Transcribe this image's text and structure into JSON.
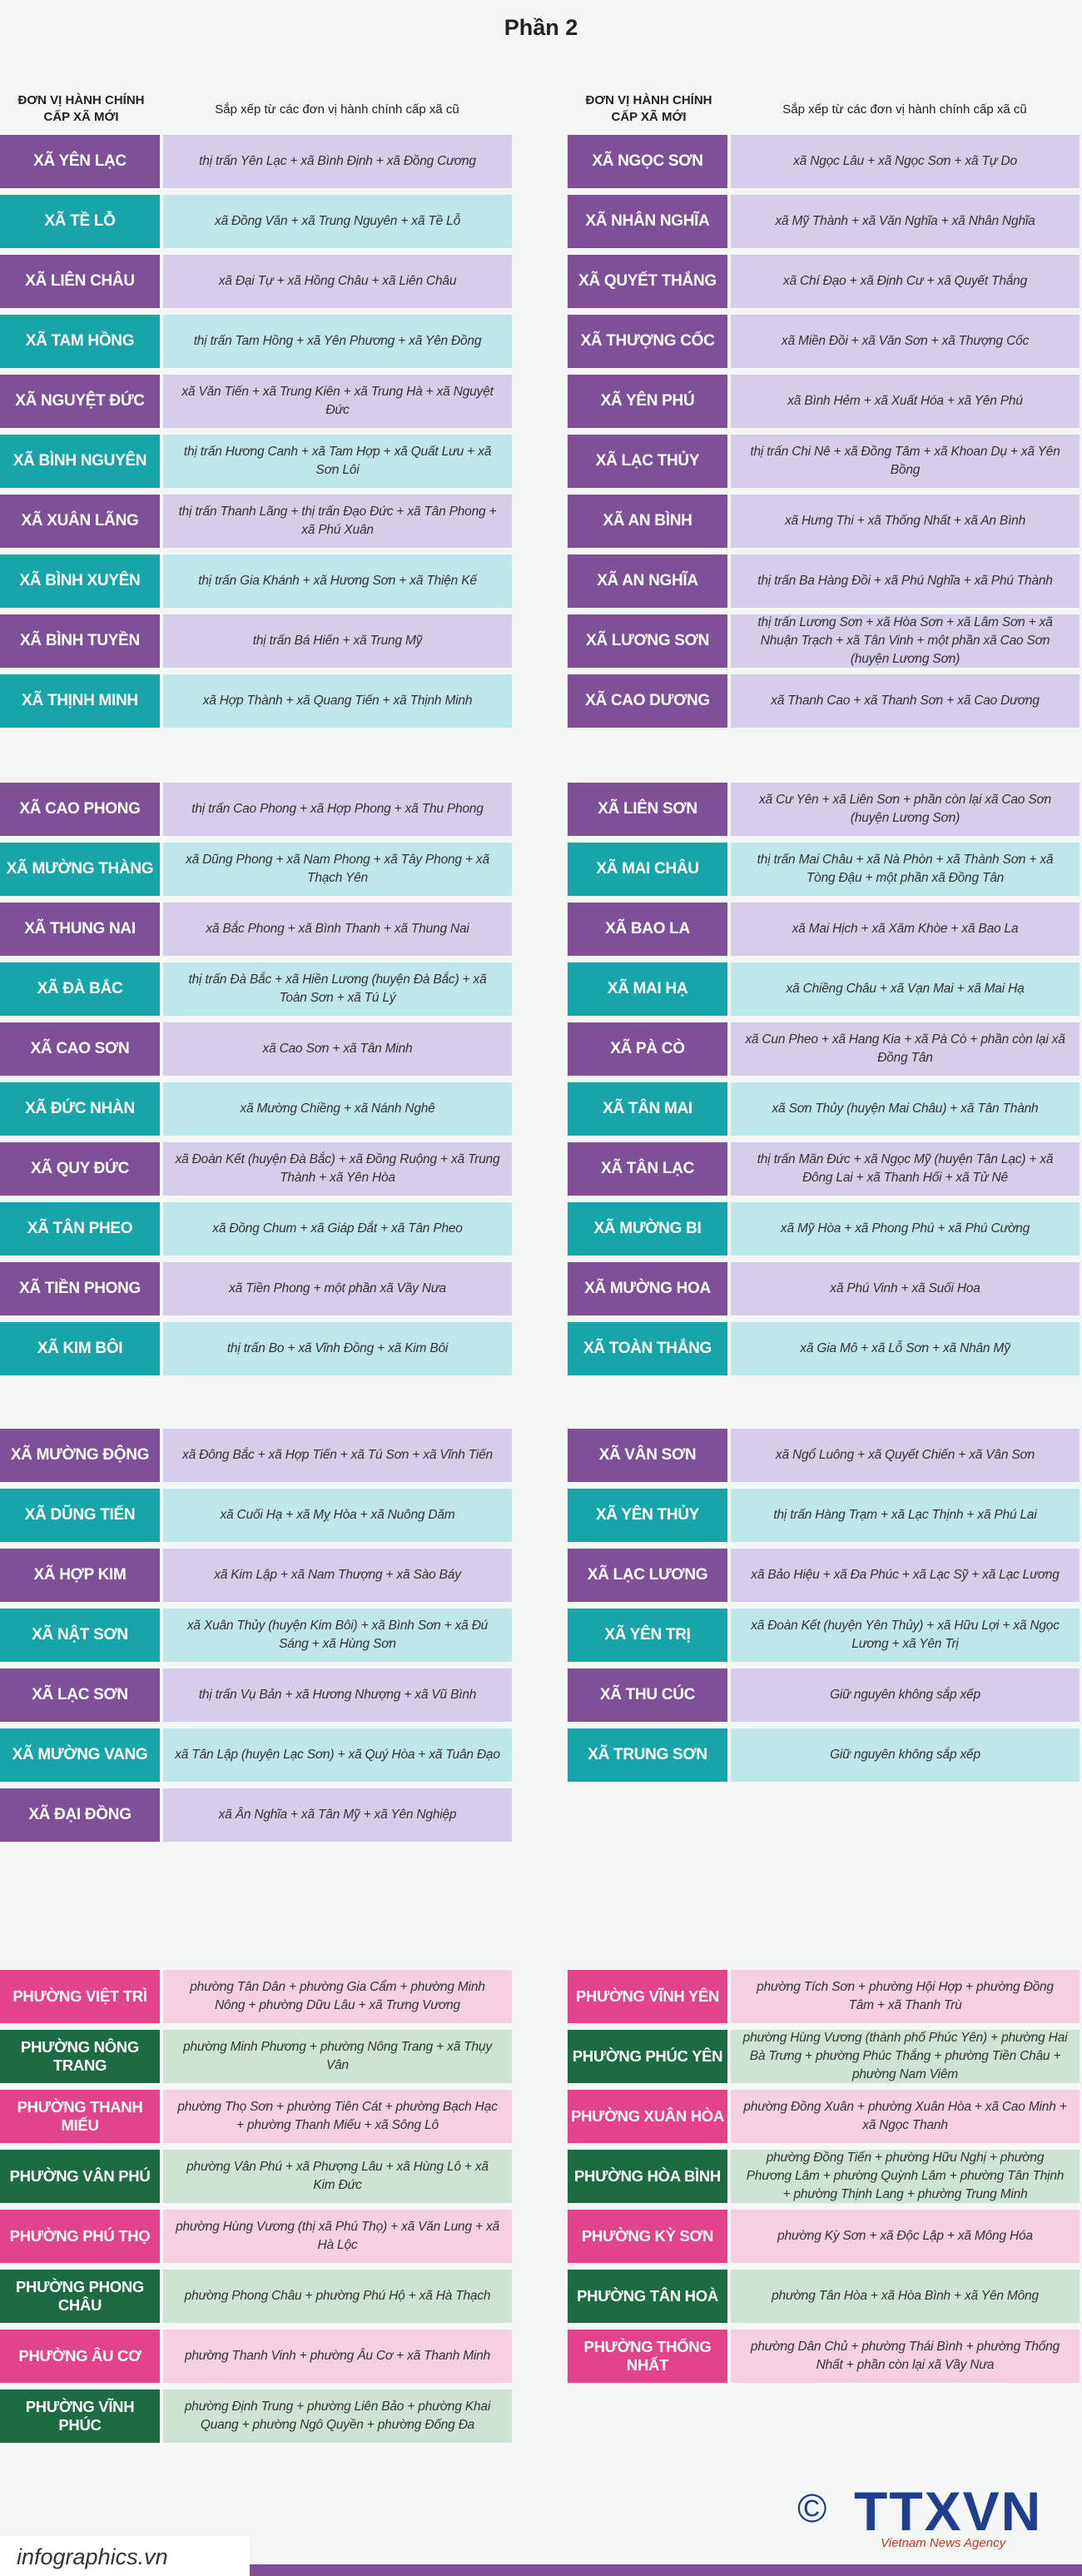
{
  "title": "Phần 2",
  "header": {
    "col1_line1": "ĐƠN VỊ HÀNH CHÍNH",
    "col1_line2": "CẤP XÃ MỚI",
    "col2": "Sắp xếp từ các đơn vị hành chính cấp xã cũ"
  },
  "section1_left": [
    {
      "name": "XÃ YÊN LẠC",
      "desc": "thị trấn Yên Lạc + xã Bình Định + xã Đồng Cương"
    },
    {
      "name": "XÃ TỀ LỖ",
      "desc": "xã Đồng Văn + xã Trung Nguyên + xã Tề Lỗ"
    },
    {
      "name": "XÃ LIÊN CHÂU",
      "desc": "xã Đại Tự + xã Hồng Châu + xã Liên Châu"
    },
    {
      "name": "XÃ TAM HỒNG",
      "desc": "thị trấn Tam Hồng + xã Yên Phương + xã Yên Đồng"
    },
    {
      "name": "XÃ NGUYỆT ĐỨC",
      "desc": "xã Văn Tiến + xã Trung Kiên + xã Trung Hà + xã Nguyệt Đức"
    },
    {
      "name": "XÃ BÌNH NGUYÊN",
      "desc": "thị trấn Hương Canh + xã Tam Hợp + xã Quất Lưu + xã Sơn Lôi"
    },
    {
      "name": "XÃ XUÂN LÃNG",
      "desc": "thị trấn Thanh Lãng + thị trấn Đạo Đức + xã Tân Phong + xã Phú Xuân"
    },
    {
      "name": "XÃ BÌNH XUYÊN",
      "desc": "thị trấn Gia Khánh + xã Hương Sơn + xã Thiện Kế"
    },
    {
      "name": "XÃ BÌNH TUYỀN",
      "desc": "thị trấn Bá Hiến + xã Trung Mỹ"
    },
    {
      "name": "XÃ THỊNH MINH",
      "desc": "xã Hợp Thành + xã Quang Tiến + xã Thịnh Minh"
    }
  ],
  "section1_right": [
    {
      "name": "XÃ NGỌC SƠN",
      "desc": "xã Ngọc Lâu + xã Ngọc Sơn + xã Tự Do"
    },
    {
      "name": "XÃ NHÂN NGHĨA",
      "desc": "xã Mỹ Thành + xã Văn Nghĩa + xã Nhân Nghĩa"
    },
    {
      "name": "XÃ QUYẾT THẮNG",
      "desc": "xã Chí Đạo + xã Định Cư + xã Quyết Thắng"
    },
    {
      "name": "XÃ THƯỢNG CỐC",
      "desc": "xã Miền Đồi + xã Văn Sơn + xã Thượng Cốc"
    },
    {
      "name": "XÃ YÊN PHÚ",
      "desc": "xã Bình Hẻm + xã Xuất Hóa + xã Yên Phú"
    },
    {
      "name": "XÃ LẠC THỦY",
      "desc": "thị trấn Chi Nê + xã Đồng Tâm + xã Khoan Dụ + xã Yên Bồng"
    },
    {
      "name": "XÃ AN BÌNH",
      "desc": "xã Hưng Thi + xã Thống Nhất + xã An Bình"
    },
    {
      "name": "XÃ AN NGHĨA",
      "desc": "thị trấn Ba Hàng Đồi + xã Phú Nghĩa + xã Phú Thành"
    },
    {
      "name": "XÃ LƯƠNG SƠN",
      "desc": "thị trấn Lương Sơn + xã Hòa Sơn + xã Lâm Sơn + xã Nhuận Trạch + xã Tân Vinh + một phần xã Cao Sơn (huyện Lương Sơn)"
    },
    {
      "name": "XÃ CAO DƯƠNG",
      "desc": "xã Thanh Cao + xã Thanh Sơn + xã Cao Dương"
    }
  ],
  "section2_left": [
    {
      "name": "XÃ CAO PHONG",
      "desc": "thị trấn Cao Phong + xã Hợp Phong + xã Thu Phong"
    },
    {
      "name": "XÃ MƯỜNG THÀNG",
      "desc": "xã Dũng Phong + xã Nam Phong + xã Tây Phong + xã Thạch Yên"
    },
    {
      "name": "XÃ THUNG NAI",
      "desc": "xã Bắc Phong + xã Bình Thanh + xã Thung Nai"
    },
    {
      "name": "XÃ ĐÀ BẮC",
      "desc": "thị trấn Đà Bắc + xã Hiền Lương (huyện Đà Bắc) + xã Toàn Sơn + xã Tú Lý"
    },
    {
      "name": "XÃ CAO SƠN",
      "desc": "xã Cao Sơn + xã Tân Minh"
    },
    {
      "name": "XÃ ĐỨC NHÀN",
      "desc": "xã Mường Chiềng + xã Nánh Nghê"
    },
    {
      "name": "XÃ QUY ĐỨC",
      "desc": "xã Đoàn Kết (huyện Đà Bắc) + xã Đồng Ruộng + xã Trung Thành + xã Yên Hòa"
    },
    {
      "name": "XÃ TÂN PHEO",
      "desc": "xã Đồng Chum + xã Giáp Đắt + xã Tân Pheo"
    },
    {
      "name": "XÃ TIỀN PHONG",
      "desc": "xã Tiền Phong + một phần xã Vầy Nưa"
    },
    {
      "name": "XÃ KIM BÔI",
      "desc": "thị trấn Bo + xã Vĩnh Đồng + xã Kim Bôi"
    }
  ],
  "section2_right": [
    {
      "name": "XÃ LIÊN SƠN",
      "desc": "xã Cư Yên + xã Liên Sơn + phần còn lại xã Cao Sơn (huyện Lương Sơn)"
    },
    {
      "name": "XÃ MAI CHÂU",
      "desc": "thị trấn Mai Châu + xã Nà Phòn + xã Thành Sơn + xã Tòng Đậu + một phần xã Đồng Tân"
    },
    {
      "name": "XÃ BAO LA",
      "desc": "xã Mai Hịch + xã Xăm Khòe + xã Bao La"
    },
    {
      "name": "XÃ MAI HẠ",
      "desc": "xã Chiềng Châu + xã Vạn Mai + xã Mai Hạ"
    },
    {
      "name": "XÃ PÀ CÒ",
      "desc": "xã Cun Pheo + xã Hang Kia + xã Pà Cò + phần còn lại xã Đồng Tân"
    },
    {
      "name": "XÃ TÂN MAI",
      "desc": "xã Sơn Thủy (huyện Mai Châu) + xã Tân Thành"
    },
    {
      "name": "XÃ TÂN LẠC",
      "desc": "thị trấn Mãn Đức + xã Ngọc Mỹ (huyện Tân Lạc) + xã Đông Lai + xã Thanh Hối + xã Tử Nê"
    },
    {
      "name": "XÃ MƯỜNG BI",
      "desc": "xã Mỹ Hòa + xã Phong Phú + xã Phú Cường"
    },
    {
      "name": "XÃ MƯỜNG HOA",
      "desc": "xã Phú Vinh + xã Suối Hoa"
    },
    {
      "name": "XÃ TOÀN THẮNG",
      "desc": "xã Gia Mô + xã Lỗ Sơn + xã Nhân Mỹ"
    }
  ],
  "section3_left": [
    {
      "name": "XÃ MƯỜNG ĐỘNG",
      "desc": "xã Đông Bắc + xã Hợp Tiến + xã Tú Sơn + xã Vĩnh Tiến"
    },
    {
      "name": "XÃ DŨNG TIẾN",
      "desc": "xã Cuối Hạ + xã Mỵ Hòa + xã Nuông Dăm"
    },
    {
      "name": "XÃ HỢP KIM",
      "desc": "xã Kim Lập + xã Nam Thượng + xã Sào Báy"
    },
    {
      "name": "XÃ NẬT SƠN",
      "desc": "xã Xuân Thủy (huyện Kim Bôi) + xã Bình Sơn + xã Đú Sáng + xã Hùng Sơn"
    },
    {
      "name": "XÃ LẠC SƠN",
      "desc": "thị trấn Vụ Bản + xã Hương Nhượng + xã Vũ Bình"
    },
    {
      "name": "XÃ MƯỜNG VANG",
      "desc": "xã Tân Lập (huyện Lạc Sơn) + xã Quý Hòa + xã Tuân Đạo"
    },
    {
      "name": "XÃ ĐẠI ĐỒNG",
      "desc": "xã Ân Nghĩa + xã Tân Mỹ + xã Yên Nghiệp"
    }
  ],
  "section3_right": [
    {
      "name": "XÃ VÂN SƠN",
      "desc": "xã Ngổ Luông + xã Quyết Chiến + xã Vân Sơn"
    },
    {
      "name": "XÃ YÊN THỦY",
      "desc": "thị trấn Hàng Trạm + xã Lạc Thịnh + xã Phú Lai"
    },
    {
      "name": "XÃ LẠC LƯƠNG",
      "desc": "xã Bảo Hiệu + xã Đa Phúc + xã Lạc Sỹ + xã Lạc Lương"
    },
    {
      "name": "XÃ YÊN TRỊ",
      "desc": "xã Đoàn Kết (huyện Yên Thủy) + xã Hữu Lợi + xã Ngọc Lương + xã Yên Trị"
    },
    {
      "name": "XÃ THU CÚC",
      "desc": "Giữ nguyên không sắp xếp"
    },
    {
      "name": "XÃ TRUNG SƠN",
      "desc": "Giữ nguyên không sắp xếp"
    }
  ],
  "section4_left": [
    {
      "name": "PHƯỜNG VIỆT TRÌ",
      "desc": "phường Tân Dân + phường Gia Cẩm + phường Minh Nông + phường Dữu Lâu + xã Trưng Vương",
      "color": "pink"
    },
    {
      "name": "PHƯỜNG NÔNG TRANG",
      "desc": "phường Minh Phương + phường Nông Trang + xã Thụy Vân",
      "color": "green"
    },
    {
      "name": "PHƯỜNG THANH MIẾU",
      "desc": "phường Thọ Sơn + phường Tiên Cát + phường Bạch Hạc + phường Thanh Miếu + xã Sông Lô",
      "color": "pink"
    },
    {
      "name": "PHƯỜNG VÂN PHÚ",
      "desc": "phường Vân Phú + xã Phượng Lâu + xã Hùng Lô + xã Kim Đức",
      "color": "green"
    },
    {
      "name": "PHƯỜNG PHÚ THỌ",
      "desc": "phường Hùng Vương (thị xã Phú Thọ) + xã Văn Lung + xã Hà Lộc",
      "color": "pink"
    },
    {
      "name": "PHƯỜNG PHONG CHÂU",
      "desc": "phường Phong Châu + phường Phú Hộ + xã Hà Thạch",
      "color": "green"
    },
    {
      "name": "PHƯỜNG ÂU CƠ",
      "desc": "phường Thanh Vinh + phường Âu Cơ + xã Thanh Minh",
      "color": "pink"
    },
    {
      "name": "PHƯỜNG VĨNH PHÚC",
      "desc": "phường Định Trung + phường Liên Bảo + phường Khai Quang + phường Ngô Quyền + phường Đống Đa",
      "color": "green"
    }
  ],
  "section4_right": [
    {
      "name": "PHƯỜNG VĨNH YÊN",
      "desc": "phường Tích Sơn + phường Hội Hợp + phường Đồng Tâm + xã Thanh Trù",
      "color": "pink"
    },
    {
      "name": "PHƯỜNG PHÚC YÊN",
      "desc": "phường Hùng Vương (thành phố Phúc Yên) + phường Hai Bà Trưng + phường Phúc Thắng + phường Tiền Châu + phường Nam Viêm",
      "color": "green"
    },
    {
      "name": "PHƯỜNG XUÂN HÒA",
      "desc": "phường Đồng Xuân + phường Xuân Hòa + xã Cao Minh + xã Ngọc Thanh",
      "color": "pink"
    },
    {
      "name": "PHƯỜNG HÒA BÌNH",
      "desc": "phường Đồng Tiến + phường Hữu Nghị + phường Phương Lâm + phường Quỳnh Lâm + phường Tân Thịnh + phường Thịnh Lang + phường Trung Minh",
      "color": "green"
    },
    {
      "name": "PHƯỜNG KỲ SƠN",
      "desc": "phường Kỳ Sơn + xã Độc Lập + xã Mông Hóa",
      "color": "pink"
    },
    {
      "name": "PHƯỜNG TÂN HOÀ",
      "desc": "phường Tân Hòa + xã Hòa Bình + xã Yên Mông",
      "color": "green"
    },
    {
      "name": "PHƯỜNG THỐNG NHẤT",
      "desc": "phường Dân Chủ + phường Thái Bình + phường Thống Nhất + phần còn lại xã Vầy Nưa",
      "color": "pink"
    }
  ],
  "footer": {
    "site": "infographics.vn",
    "copyright": "©",
    "brand": "TTXVN",
    "agency": "Vietnam News Agency"
  }
}
